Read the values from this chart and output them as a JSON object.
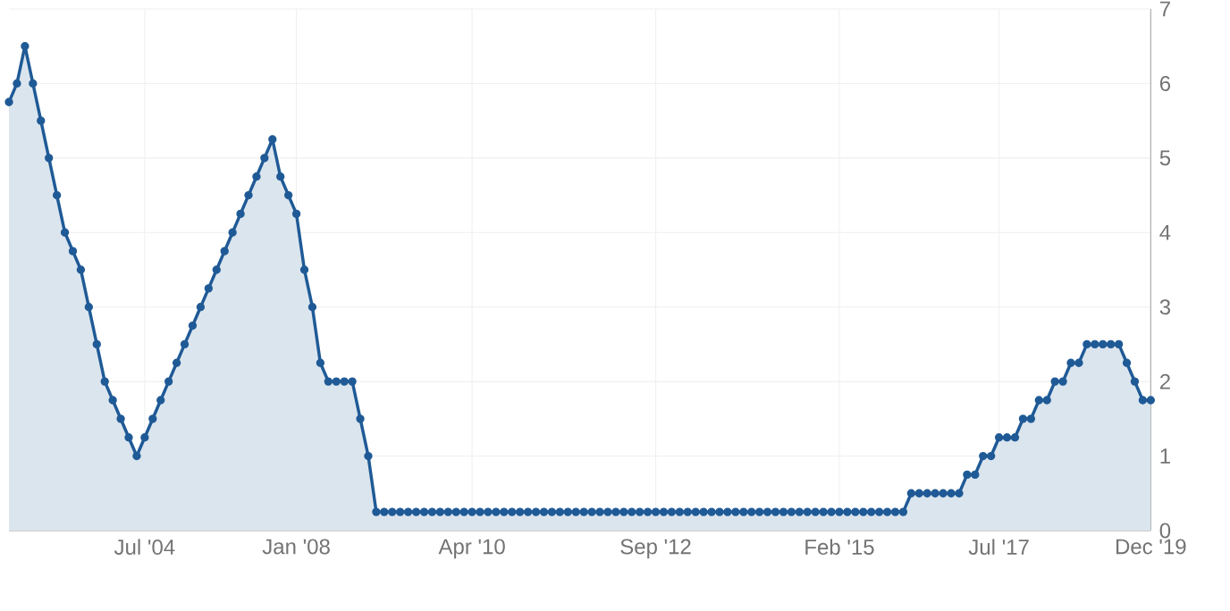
{
  "chart_data": {
    "type": "area",
    "color": "#1f5a96",
    "marker": "circle",
    "grid": true,
    "ylim": [
      0,
      7
    ],
    "yticks": [
      0,
      1,
      2,
      3,
      4,
      5,
      6,
      7
    ],
    "categories": [
      null,
      null,
      null,
      null,
      null,
      null,
      null,
      null,
      null,
      null,
      null,
      null,
      null,
      null,
      null,
      null,
      null,
      "Jul '04",
      null,
      null,
      null,
      null,
      null,
      null,
      null,
      null,
      null,
      null,
      null,
      null,
      null,
      null,
      null,
      null,
      null,
      null,
      "Jan '08",
      null,
      null,
      null,
      null,
      null,
      null,
      null,
      null,
      null,
      null,
      null,
      null,
      null,
      null,
      null,
      null,
      null,
      null,
      null,
      null,
      null,
      "Apr '10",
      null,
      null,
      null,
      null,
      null,
      null,
      null,
      null,
      null,
      null,
      null,
      null,
      null,
      null,
      null,
      null,
      null,
      null,
      null,
      null,
      null,
      null,
      "Sep '12",
      null,
      null,
      null,
      null,
      null,
      null,
      null,
      null,
      null,
      null,
      null,
      null,
      null,
      null,
      null,
      null,
      null,
      null,
      null,
      null,
      null,
      null,
      "Feb '15",
      null,
      null,
      null,
      null,
      null,
      null,
      null,
      null,
      null,
      null,
      null,
      null,
      null,
      null,
      null,
      null,
      null,
      null,
      null,
      "Jul '17",
      null,
      null,
      null,
      null,
      null,
      null,
      null,
      null,
      null,
      null,
      null,
      null,
      null,
      null,
      null,
      null,
      null,
      null,
      "Dec '19"
    ],
    "values": [
      5.75,
      6.0,
      6.5,
      6.0,
      5.5,
      5.0,
      4.5,
      4.0,
      3.75,
      3.5,
      3.0,
      2.5,
      2.0,
      1.75,
      1.5,
      1.25,
      1.0,
      1.25,
      1.5,
      1.75,
      2.0,
      2.25,
      2.5,
      2.75,
      3.0,
      3.25,
      3.5,
      3.75,
      4.0,
      4.25,
      4.5,
      4.75,
      5.0,
      5.25,
      4.75,
      4.5,
      4.25,
      3.5,
      3.0,
      2.25,
      2.0,
      2.0,
      2.0,
      2.0,
      1.5,
      1.0,
      0.25,
      0.25,
      0.25,
      0.25,
      0.25,
      0.25,
      0.25,
      0.25,
      0.25,
      0.25,
      0.25,
      0.25,
      0.25,
      0.25,
      0.25,
      0.25,
      0.25,
      0.25,
      0.25,
      0.25,
      0.25,
      0.25,
      0.25,
      0.25,
      0.25,
      0.25,
      0.25,
      0.25,
      0.25,
      0.25,
      0.25,
      0.25,
      0.25,
      0.25,
      0.25,
      0.25,
      0.25,
      0.25,
      0.25,
      0.25,
      0.25,
      0.25,
      0.25,
      0.25,
      0.25,
      0.25,
      0.25,
      0.25,
      0.25,
      0.25,
      0.25,
      0.25,
      0.25,
      0.25,
      0.25,
      0.25,
      0.25,
      0.25,
      0.25,
      0.25,
      0.25,
      0.25,
      0.25,
      0.25,
      0.25,
      0.25,
      0.25,
      0.5,
      0.5,
      0.5,
      0.5,
      0.5,
      0.5,
      0.5,
      0.75,
      0.75,
      1.0,
      1.0,
      1.25,
      1.25,
      1.25,
      1.5,
      1.5,
      1.75,
      1.75,
      2.0,
      2.0,
      2.25,
      2.25,
      2.5,
      2.5,
      2.5,
      2.5,
      2.5,
      2.25,
      2.0,
      1.75,
      1.75
    ]
  }
}
